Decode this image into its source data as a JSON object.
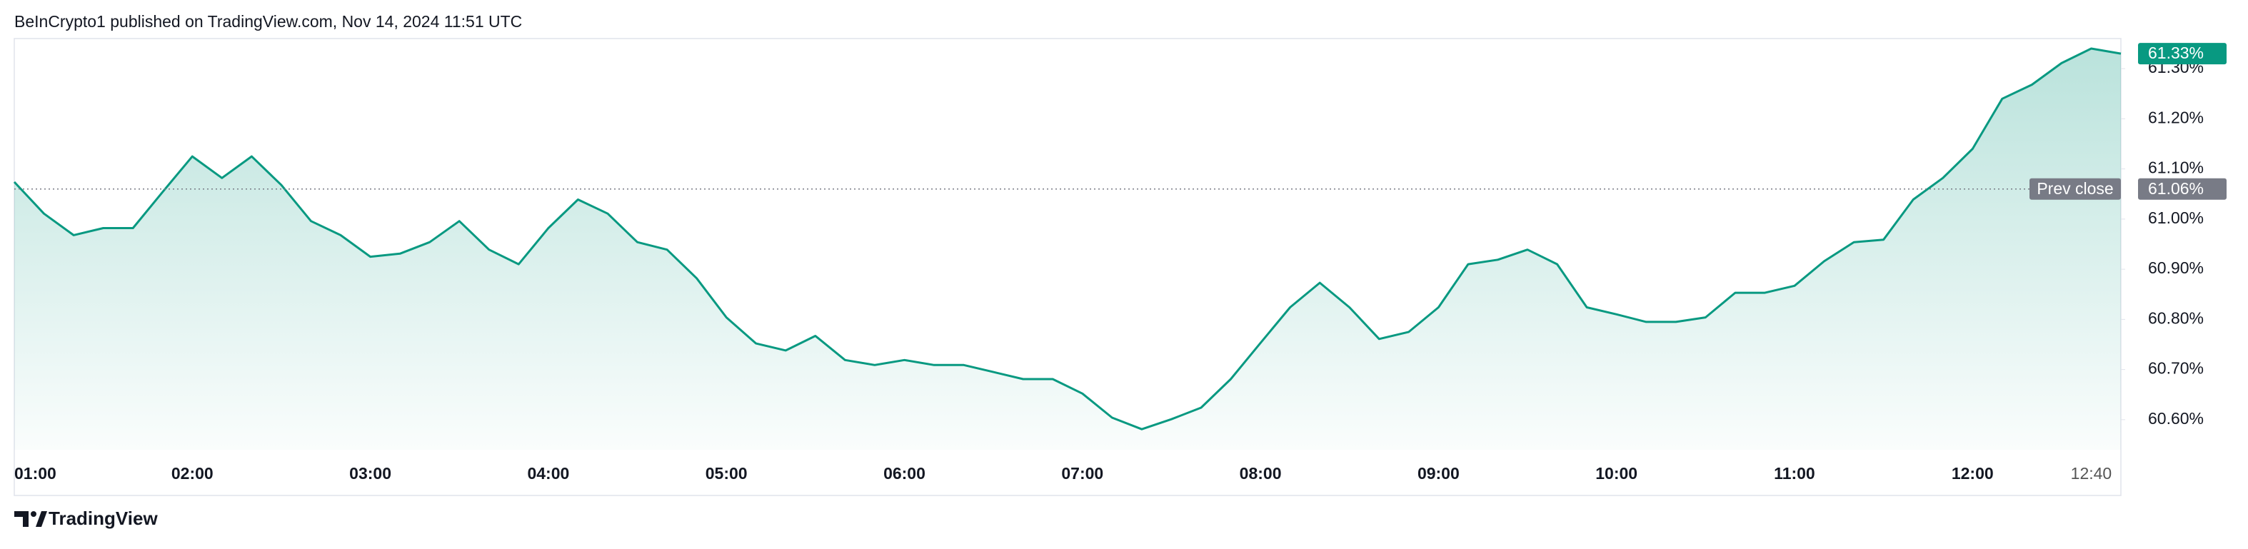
{
  "header": {
    "title": "BeInCrypto1 published on TradingView.com, Nov 14, 2024 11:51 UTC"
  },
  "footer": {
    "brand": "TradingView"
  },
  "chart_data": {
    "type": "area",
    "color": "#089981",
    "x": [
      "01:00",
      "01:10",
      "01:20",
      "01:30",
      "01:40",
      "01:50",
      "02:00",
      "02:10",
      "02:20",
      "02:30",
      "02:40",
      "02:50",
      "03:00",
      "03:10",
      "03:20",
      "03:30",
      "03:40",
      "03:50",
      "04:00",
      "04:10",
      "04:20",
      "04:30",
      "04:40",
      "04:50",
      "05:00",
      "05:10",
      "05:20",
      "05:30",
      "05:40",
      "05:50",
      "06:00",
      "06:10",
      "06:20",
      "06:30",
      "06:40",
      "06:50",
      "07:00",
      "07:10",
      "07:20",
      "07:30",
      "07:40",
      "07:50",
      "08:00",
      "08:10",
      "08:20",
      "08:30",
      "08:40",
      "08:50",
      "09:00",
      "09:10",
      "09:20",
      "09:30",
      "09:40",
      "09:50",
      "10:00",
      "10:10",
      "10:20",
      "10:30",
      "10:40",
      "10:50",
      "11:00",
      "11:10",
      "11:20",
      "11:30",
      "11:40",
      "11:50",
      "12:00",
      "12:10",
      "12:20",
      "12:30",
      "12:40",
      "12:50"
    ],
    "values": [
      61.074,
      61.011,
      60.968,
      60.982,
      60.982,
      61.054,
      61.125,
      61.082,
      61.125,
      61.068,
      60.996,
      60.968,
      60.925,
      60.931,
      60.954,
      60.996,
      60.939,
      60.91,
      60.982,
      61.039,
      61.011,
      60.954,
      60.939,
      60.882,
      60.804,
      60.752,
      60.738,
      60.767,
      60.719,
      60.709,
      60.719,
      60.709,
      60.709,
      60.695,
      60.681,
      60.681,
      60.652,
      60.604,
      60.581,
      60.601,
      60.624,
      60.681,
      60.753,
      60.824,
      60.873,
      60.824,
      60.761,
      60.775,
      60.824,
      60.91,
      60.919,
      60.939,
      60.91,
      60.824,
      60.81,
      60.795,
      60.795,
      60.804,
      60.853,
      60.853,
      60.867,
      60.916,
      60.954,
      60.959,
      61.039,
      61.082,
      61.14,
      61.24,
      61.268,
      61.311,
      61.34,
      61.33
    ],
    "last_value_label": "61.33%",
    "prev_close": {
      "label": "Prev close",
      "value": 61.06,
      "value_label": "61.06%"
    },
    "xlim": [
      "01:00",
      "12:50"
    ],
    "xticks": [
      "01:00",
      "02:00",
      "03:00",
      "04:00",
      "05:00",
      "06:00",
      "07:00",
      "08:00",
      "09:00",
      "10:00",
      "11:00",
      "12:00",
      "12:40"
    ],
    "ylim": [
      60.54,
      61.36
    ],
    "yticks": [
      {
        "value": 60.6,
        "label": "60.60%"
      },
      {
        "value": 60.7,
        "label": "60.70%"
      },
      {
        "value": 60.8,
        "label": "60.80%"
      },
      {
        "value": 60.9,
        "label": "60.90%"
      },
      {
        "value": 61.0,
        "label": "61.00%"
      },
      {
        "value": 61.1,
        "label": "61.10%"
      },
      {
        "value": 61.2,
        "label": "61.20%"
      },
      {
        "value": 61.3,
        "label": "61.30%"
      }
    ]
  }
}
